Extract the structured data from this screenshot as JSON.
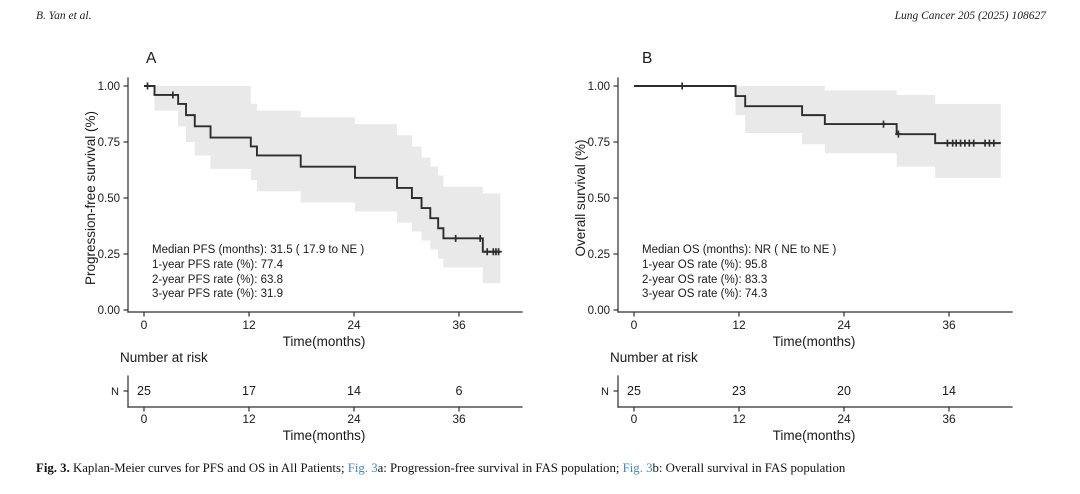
{
  "page": {
    "header_left": "B. Yan et al.",
    "header_right": "Lung Cancer 205 (2025) 108627"
  },
  "colors": {
    "curve": "#2d2d2d",
    "ci_band": "#e9e9e9",
    "axis": "#2d2d2d",
    "text": "#1a1a1a",
    "link_blue": "#4187c7"
  },
  "chart_data": [
    {
      "id": "pfs",
      "type": "line",
      "subtype": "kaplan-meier-step",
      "panel_label": "A",
      "ylabel": "Progression-free survival (%)",
      "xlabel": "Time(months)",
      "xticks": [
        "0",
        "12",
        "24",
        "36"
      ],
      "yticks": [
        "0.00",
        "0.25",
        "0.50",
        "0.75",
        "1.00"
      ],
      "xlim": [
        0,
        43
      ],
      "ylim": [
        0,
        1
      ],
      "grid": false,
      "legend": "none",
      "steps": [
        [
          0,
          1.0
        ],
        [
          1.2,
          0.96
        ],
        [
          3.9,
          0.92
        ],
        [
          4.8,
          0.87
        ],
        [
          5.8,
          0.82
        ],
        [
          7.6,
          0.77
        ],
        [
          12.2,
          0.73
        ],
        [
          12.9,
          0.69
        ],
        [
          17.9,
          0.64
        ],
        [
          24.1,
          0.59
        ],
        [
          28.9,
          0.545
        ],
        [
          30.6,
          0.5
        ],
        [
          31.7,
          0.455
        ],
        [
          32.7,
          0.41
        ],
        [
          33.6,
          0.365
        ],
        [
          34.2,
          0.32
        ],
        [
          38.7,
          0.26
        ]
      ],
      "end_time": 40.7,
      "censors": [
        [
          0.4,
          1.0
        ],
        [
          3.3,
          0.96
        ],
        [
          35.6,
          0.32
        ],
        [
          38.4,
          0.32
        ],
        [
          39.2,
          0.26
        ],
        [
          39.9,
          0.26
        ],
        [
          40.2,
          0.26
        ],
        [
          40.5,
          0.26
        ]
      ],
      "ci": [
        [
          1.2,
          0.89,
          1.0
        ],
        [
          3.9,
          0.82,
          1.0
        ],
        [
          4.8,
          0.75,
          1.0
        ],
        [
          5.8,
          0.69,
          1.0
        ],
        [
          7.6,
          0.63,
          1.0
        ],
        [
          12.2,
          0.58,
          0.92
        ],
        [
          12.9,
          0.53,
          0.89
        ],
        [
          17.9,
          0.48,
          0.86
        ],
        [
          24.1,
          0.44,
          0.83
        ],
        [
          28.9,
          0.39,
          0.78
        ],
        [
          30.6,
          0.35,
          0.73
        ],
        [
          31.7,
          0.31,
          0.68
        ],
        [
          32.7,
          0.27,
          0.64
        ],
        [
          33.6,
          0.23,
          0.6
        ],
        [
          34.2,
          0.19,
          0.55
        ],
        [
          38.7,
          0.12,
          0.52
        ]
      ],
      "annotations": [
        "Median PFS (months): 31.5 ( 17.9 to NE )",
        "1-year PFS rate (%): 77.4",
        "2-year PFS rate (%): 63.8",
        "3-year PFS rate (%): 31.9"
      ],
      "number_at_risk": {
        "title": "Number at risk",
        "row_label": "N",
        "times": [
          "0",
          "12",
          "24",
          "36"
        ],
        "counts": [
          "25",
          "17",
          "14",
          "6"
        ],
        "xlabel": "Time(months)"
      }
    },
    {
      "id": "os",
      "type": "line",
      "subtype": "kaplan-meier-step",
      "panel_label": "B",
      "ylabel": "Overall survival (%)",
      "xlabel": "Time(months)",
      "xticks": [
        "0",
        "12",
        "24",
        "36"
      ],
      "yticks": [
        "0.00",
        "0.25",
        "0.50",
        "0.75",
        "1.00"
      ],
      "xlim": [
        0,
        43
      ],
      "ylim": [
        0,
        1
      ],
      "grid": false,
      "legend": "none",
      "steps": [
        [
          0,
          1.0
        ],
        [
          11.6,
          0.955
        ],
        [
          12.7,
          0.91
        ],
        [
          19.2,
          0.87
        ],
        [
          21.8,
          0.83
        ],
        [
          30.0,
          0.785
        ],
        [
          34.4,
          0.745
        ]
      ],
      "end_time": 41.9,
      "censors": [
        [
          5.5,
          1.0
        ],
        [
          28.5,
          0.83
        ],
        [
          30.2,
          0.785
        ],
        [
          35.8,
          0.745
        ],
        [
          36.4,
          0.745
        ],
        [
          36.8,
          0.745
        ],
        [
          37.3,
          0.745
        ],
        [
          37.8,
          0.745
        ],
        [
          38.3,
          0.745
        ],
        [
          38.8,
          0.745
        ],
        [
          40.1,
          0.745
        ],
        [
          40.6,
          0.745
        ],
        [
          41.1,
          0.745
        ]
      ],
      "ci": [
        [
          11.6,
          0.87,
          1.0
        ],
        [
          12.7,
          0.79,
          1.0
        ],
        [
          19.2,
          0.74,
          1.0
        ],
        [
          21.8,
          0.7,
          0.98
        ],
        [
          30.0,
          0.64,
          0.96
        ],
        [
          34.4,
          0.59,
          0.92
        ]
      ],
      "annotations": [
        "Median OS (months): NR ( NE to NE )",
        "1-year OS rate (%): 95.8",
        "2-year OS rate (%): 83.3",
        "3-year OS rate (%): 74.3"
      ],
      "number_at_risk": {
        "title": "Number at risk",
        "row_label": "N",
        "times": [
          "0",
          "12",
          "24",
          "36"
        ],
        "counts": [
          "25",
          "23",
          "20",
          "14"
        ],
        "xlabel": "Time(months)"
      }
    }
  ],
  "caption": {
    "segments": [
      {
        "text": "Fig. 3.",
        "style": "bold"
      },
      {
        "text": " Kaplan-Meier curves for PFS and OS in All Patients; ",
        "style": "normal"
      },
      {
        "text": "Fig. 3",
        "style": "link"
      },
      {
        "text": "a: Progression-free survival in FAS population; ",
        "style": "normal"
      },
      {
        "text": "Fig. 3",
        "style": "link"
      },
      {
        "text": "b: Overall survival in FAS population",
        "style": "normal"
      }
    ]
  }
}
